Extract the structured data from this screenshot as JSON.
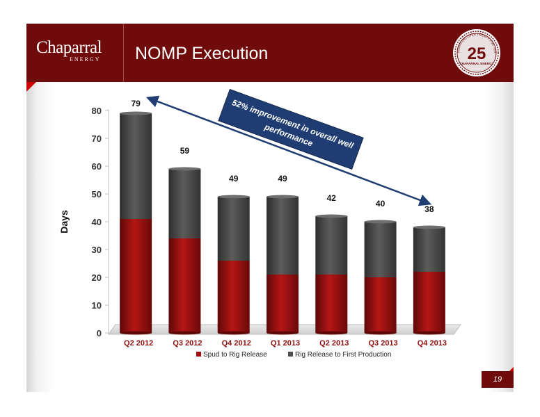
{
  "header": {
    "logo_text": "Chaparral",
    "logo_subtext": "ENERGY",
    "title": "NOMP Execution",
    "seal_number": "25",
    "seal_text": "CHAPARRAL ENERGY",
    "seal_arc_text": "CELEBRATING OVER TWENTY FIVE YEARS"
  },
  "slide": {
    "page_number": "19"
  },
  "colors": {
    "header": "#6f0b0b",
    "accent": "#cc0000",
    "spud": "#a30f0f",
    "rig": "#4d4d4d",
    "callout": "#1f3d73"
  },
  "chart_data": {
    "type": "bar",
    "stacked": true,
    "categories": [
      "Q2 2012",
      "Q3 2012",
      "Q4 2012",
      "Q1 2013",
      "Q2 2013",
      "Q3 2013",
      "Q4 2013"
    ],
    "series": [
      {
        "name": "Spud to Rig Release",
        "values": [
          41,
          34,
          26,
          21,
          21,
          20,
          22
        ]
      },
      {
        "name": "Rig Release to First Production",
        "values": [
          38,
          25,
          23,
          28,
          21,
          20,
          16
        ]
      }
    ],
    "totals": [
      79,
      59,
      49,
      49,
      42,
      40,
      38
    ],
    "total_labels": [
      "79",
      "59",
      "49",
      "49",
      "42",
      "40",
      "38"
    ],
    "ylabel": "Days",
    "xlabel": "",
    "ylim": [
      0,
      80
    ],
    "yticks": [
      0,
      10,
      20,
      30,
      40,
      50,
      60,
      70,
      80
    ],
    "ytick_labels": [
      "0",
      "10",
      "20",
      "30",
      "40",
      "50",
      "60",
      "70",
      "80"
    ],
    "grid": false,
    "legend_position": "bottom",
    "annotation": {
      "lines": [
        "52% improvement in overall well",
        "performance"
      ],
      "from_category": "Q2 2012",
      "to_category": "Q4 2013"
    }
  }
}
